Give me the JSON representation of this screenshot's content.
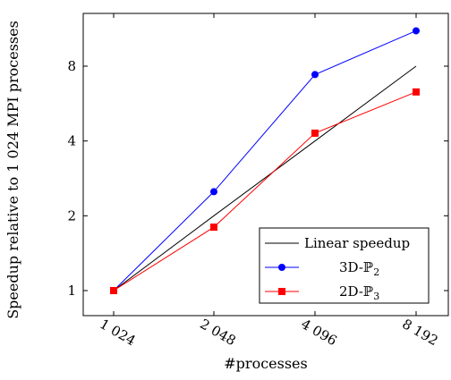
{
  "chart_data": {
    "type": "line",
    "xlabel": "#processes",
    "ylabel": "Speedup relative to 1 024 MPI processes",
    "x": [
      1024,
      2048,
      4096,
      8192
    ],
    "x_tick_labels": [
      "1 024",
      "2 048",
      "4 096",
      "8 192"
    ],
    "y_ticks": [
      1,
      2,
      4,
      8
    ],
    "y_tick_labels": [
      "1",
      "2",
      "4",
      "8"
    ],
    "y_scale": "log2",
    "x_scale": "log2",
    "ylim": [
      0.78,
      14.5
    ],
    "grid": false,
    "legend_position": "bottom-right",
    "series": [
      {
        "name": "Linear speedup",
        "values": [
          1,
          2,
          4,
          8
        ],
        "color": "#000000",
        "marker": "none"
      },
      {
        "name": "3D-ℙ2",
        "name_base": "3D-ℙ",
        "name_sub": "2",
        "values": [
          1,
          2.5,
          7.4,
          11.1
        ],
        "color": "#0000ff",
        "marker": "circle"
      },
      {
        "name": "2D-ℙ3",
        "name_base": "2D-ℙ",
        "name_sub": "3",
        "values": [
          1,
          1.8,
          4.3,
          6.3
        ],
        "color": "#ff0000",
        "marker": "square"
      }
    ]
  }
}
